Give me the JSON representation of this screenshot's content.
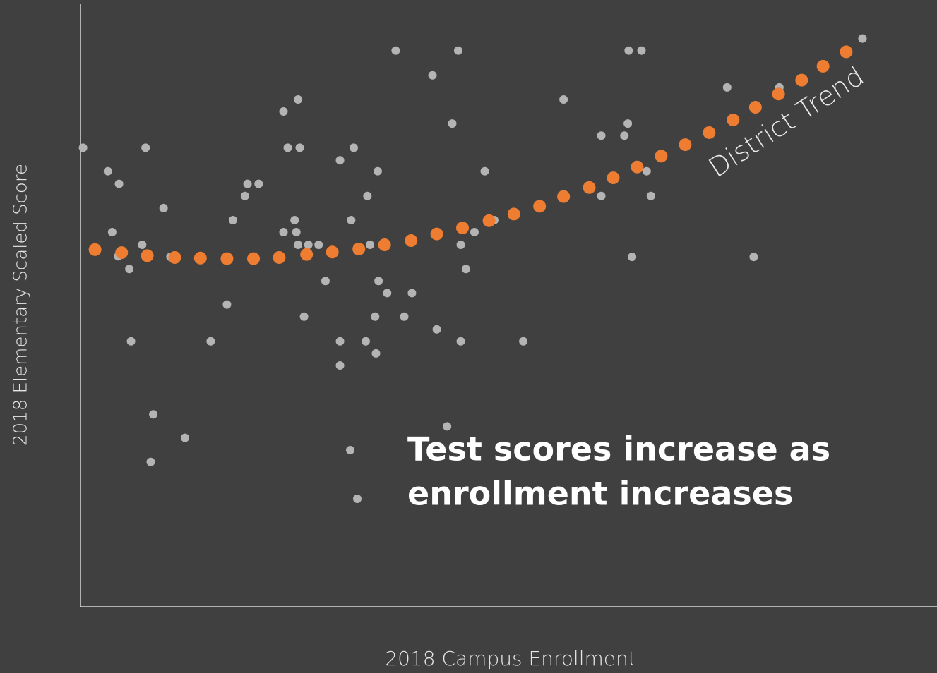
{
  "chart_data": {
    "type": "scatter",
    "x_label": "2018 Campus Enrollment",
    "y_label": "2018 Elementary Scaled Score",
    "xlim": [
      0,
      100
    ],
    "ylim": [
      0,
      100
    ],
    "annotation": [
      "Test scores increase as",
      "enrollment increases"
    ],
    "series": [
      {
        "color": "#b4b4b4",
        "x": [
          0.3,
          3.2,
          4.5,
          3.7,
          4.4,
          5.7,
          5.9,
          7.2,
          7.6,
          8.5,
          8.2,
          9.7,
          10.5,
          12.2,
          15.2,
          17.1,
          17.8,
          19.2,
          19.5,
          20.8,
          23.7,
          24.2,
          25.4,
          25.6,
          23.7,
          25.0,
          25.2,
          25.4,
          26.6,
          27.8,
          26.1,
          28.6,
          30.3,
          31.9,
          31.6,
          30.3,
          30.3,
          33.5,
          34.7,
          33.8,
          34.8,
          35.8,
          34.4,
          33.3,
          34.5,
          36.8,
          37.8,
          38.7,
          41.1,
          41.6,
          43.4,
          44.1,
          44.4,
          45.0,
          44.4,
          46.0,
          47.2,
          48.3,
          51.7,
          56.4,
          60.8,
          60.8,
          63.5,
          63.9,
          64.0,
          65.5,
          66.1,
          66.6,
          64.4,
          75.5,
          78.6,
          81.6,
          91.3,
          42.8
        ],
        "values": [
          76.1,
          72.2,
          70.1,
          62.1,
          58.1,
          56.0,
          44.0,
          60.0,
          76.1,
          31.9,
          24.0,
          66.1,
          58.0,
          28.0,
          44.0,
          50.1,
          64.1,
          68.1,
          70.1,
          70.1,
          82.1,
          76.1,
          84.1,
          76.1,
          62.1,
          64.1,
          62.1,
          60.0,
          60.0,
          60.0,
          48.1,
          54.0,
          74.0,
          76.1,
          64.1,
          44.0,
          40.0,
          68.1,
          72.2,
          60.0,
          54.0,
          52.0,
          48.1,
          44.0,
          42.0,
          92.2,
          48.1,
          52.0,
          88.1,
          46.0,
          80.1,
          92.2,
          60.0,
          56.0,
          44.0,
          62.1,
          72.2,
          64.1,
          44.0,
          84.1,
          78.1,
          68.1,
          78.1,
          80.1,
          92.2,
          92.2,
          72.2,
          68.1,
          58.0,
          86.1,
          58.0,
          86.1,
          94.2,
          29.9
        ]
      },
      {
        "name": "District Trend",
        "color": "#ee7d31",
        "x": [
          1.7,
          4.8,
          7.8,
          11.0,
          14.0,
          17.1,
          20.2,
          23.2,
          26.4,
          29.4,
          32.5,
          35.5,
          38.6,
          41.6,
          44.6,
          47.7,
          50.6,
          53.6,
          56.4,
          59.4,
          62.2,
          65.0,
          67.8,
          70.6,
          73.4,
          76.2,
          78.8,
          81.5,
          84.2,
          86.7,
          89.4
        ],
        "values": [
          59.2,
          58.7,
          58.2,
          57.9,
          57.8,
          57.7,
          57.7,
          57.9,
          58.4,
          58.8,
          59.3,
          60.0,
          60.7,
          61.8,
          62.8,
          64.0,
          65.1,
          66.4,
          68.0,
          69.5,
          71.1,
          72.9,
          74.7,
          76.6,
          78.6,
          80.7,
          82.8,
          85.0,
          87.3,
          89.6,
          92.0
        ]
      }
    ]
  }
}
